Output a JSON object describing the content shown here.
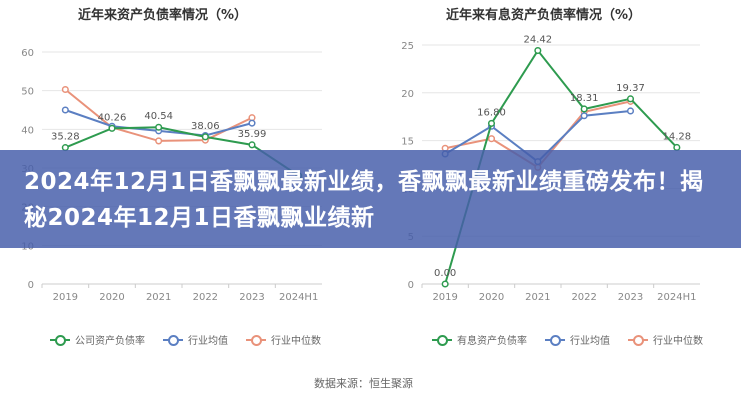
{
  "colors": {
    "series1": "#2e9b4f",
    "series2": "#5b7fc2",
    "series3": "#e9927a",
    "grid": "#e6e6e6",
    "axis_text": "#888888"
  },
  "chart_data": [
    {
      "type": "line",
      "title": "近年来资产负债率情况（%）",
      "categories": [
        "2019",
        "2020",
        "2021",
        "2022",
        "2023",
        "2024H1"
      ],
      "ylim": [
        0,
        60
      ],
      "yticks": [
        "0",
        "10",
        "20",
        "30",
        "40",
        "50",
        "60"
      ],
      "grid": true,
      "legend": "bottom",
      "series": [
        {
          "name": "公司资产负债率",
          "values": [
            35.28,
            40.26,
            40.54,
            38.06,
            35.99,
            28.0
          ],
          "labels": [
            "35.28",
            "40.26",
            "40.54",
            "38.06",
            "35.99",
            ""
          ]
        },
        {
          "name": "行业均值",
          "values": [
            45.0,
            40.8,
            39.6,
            38.4,
            41.6,
            null
          ],
          "labels": []
        },
        {
          "name": "行业中位数",
          "values": [
            50.3,
            40.5,
            37.0,
            37.2,
            43.0,
            null
          ],
          "labels": []
        }
      ]
    },
    {
      "type": "line",
      "title": "近年来有息资产负债率情况（%）",
      "categories": [
        "2019",
        "2020",
        "2021",
        "2022",
        "2023",
        "2024H1"
      ],
      "ylim": [
        0,
        25
      ],
      "yticks": [
        "0",
        "5",
        "10",
        "15",
        "20",
        "25"
      ],
      "grid": true,
      "legend": "bottom",
      "series": [
        {
          "name": "有息资产负债率",
          "values": [
            0.0,
            16.8,
            24.42,
            18.31,
            19.37,
            14.28
          ],
          "labels": [
            "0.00",
            "16.80",
            "24.42",
            "18.31",
            "19.37",
            "14.28"
          ]
        },
        {
          "name": "行业均值",
          "values": [
            13.6,
            16.5,
            12.8,
            17.6,
            18.1,
            null
          ],
          "labels": []
        },
        {
          "name": "行业中位数",
          "values": [
            14.2,
            15.2,
            12.2,
            18.0,
            19.1,
            null
          ],
          "labels": []
        }
      ]
    }
  ],
  "banner": {
    "text": "2024年12月1日香飘飘最新业绩，香飘飘最新业绩重磅发布！揭秘2024年12月1日香飘飘业绩新"
  },
  "source": "数据来源：恒生聚源"
}
